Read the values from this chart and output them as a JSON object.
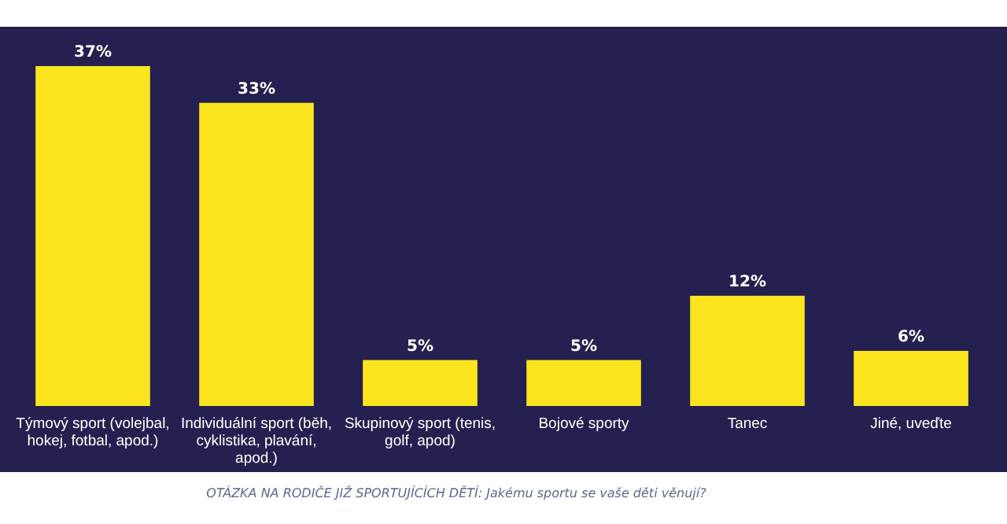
{
  "chart_data": {
    "type": "bar",
    "categories": [
      "Týmový sport (volejbal, hokej, fotbal, apod.)",
      "Individuální sport (běh, cyklistika, plavání, apod.)",
      "Skupinový sport (tenis, golf, apod)",
      "Bojové sporty",
      "Tanec",
      "Jiné, uveďte"
    ],
    "values": [
      37,
      33,
      5,
      5,
      12,
      6
    ],
    "value_labels": [
      "37%",
      "33%",
      "5%",
      "5%",
      "12%",
      "6%"
    ],
    "color": "#fce51f",
    "annotations": [
      "OTÁZKA NA RODIČE JIŽ SPORTUJÍCÍCH DĚTÍ: Jakému sportu se vaše děti věnují?"
    ]
  }
}
